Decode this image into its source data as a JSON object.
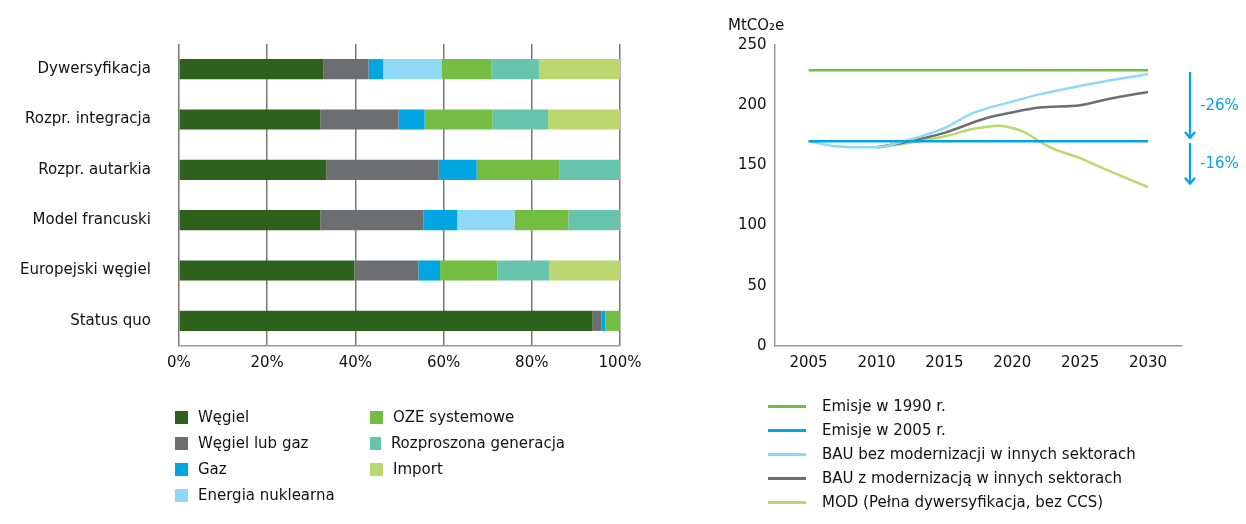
{
  "chart_data": [
    {
      "type": "bar",
      "orientation": "horizontal",
      "stacked": true,
      "categories": [
        "Dywersyfikacja",
        "Rozpr. integracja",
        "Rozpr. autarkia",
        "Model francuski",
        "Europejski węgiel",
        "Status quo"
      ],
      "series": [
        {
          "name": "Węgiel",
          "color": "#2e611c",
          "values": [
            32.7,
            32.1,
            33.4,
            32.1,
            39.8,
            93.8
          ]
        },
        {
          "name": "Węgiel lub gaz",
          "color": "#6d6e71",
          "values": [
            10.3,
            17.7,
            25.5,
            23.3,
            14.5,
            2.0
          ]
        },
        {
          "name": "Gaz",
          "color": "#00a6e2",
          "values": [
            3.3,
            5.9,
            8.6,
            7.7,
            4.9,
            0.9
          ]
        },
        {
          "name": "Energia nuklearna",
          "color": "#8fd8f6",
          "values": [
            13.2,
            0,
            0,
            13.0,
            0,
            0
          ]
        },
        {
          "name": "OZE systemowe",
          "color": "#74bd43",
          "values": [
            11.4,
            15.4,
            18.7,
            12.2,
            13.0,
            3.3
          ]
        },
        {
          "name": "Rozproszona generacja",
          "color": "#66c4ad",
          "values": [
            10.7,
            12.6,
            13.8,
            11.7,
            11.8,
            0
          ]
        },
        {
          "name": "Import",
          "color": "#bad86e",
          "values": [
            18.4,
            16.3,
            0,
            0,
            16.0,
            0
          ]
        }
      ],
      "xlim": [
        0,
        100
      ],
      "xticks": [
        {
          "value": 0,
          "label": "0%"
        },
        {
          "value": 20,
          "label": "20%"
        },
        {
          "value": 40,
          "label": "40%"
        },
        {
          "value": 60,
          "label": "60%"
        },
        {
          "value": 80,
          "label": "80%"
        },
        {
          "value": 100,
          "label": "100%"
        }
      ],
      "grid": "x",
      "legend": "bottom"
    },
    {
      "type": "line",
      "ylabel": "MtCO₂e",
      "marker": "none",
      "series": [
        {
          "name": "Emisje w 1990 r.",
          "color": "#74bd43",
          "x": [
            2005,
            2030
          ],
          "values": [
            229,
            229
          ]
        },
        {
          "name": "Emisje w 2005 r.",
          "color": "#00a6e2",
          "x": [
            2005,
            2030
          ],
          "values": [
            170,
            170
          ]
        },
        {
          "name": "BAU bez modernizacji w innych sektorach",
          "color": "#8fd8f6",
          "x": [
            2005,
            2007,
            2010,
            2012,
            2015,
            2017,
            2020,
            2022,
            2025,
            2030
          ],
          "values": [
            170,
            166,
            165,
            170,
            181,
            193,
            203,
            209,
            216,
            226
          ]
        },
        {
          "name": "BAU z modernizacją w innych sektorach",
          "color": "#6d6e71",
          "x": [
            2010,
            2012,
            2015,
            2018,
            2020,
            2022,
            2025,
            2027,
            2030
          ],
          "values": [
            165,
            169,
            177,
            189,
            194,
            198,
            200,
            205,
            211
          ]
        },
        {
          "name": "MOD (Pełna dywersyfikacja, bez CCS)",
          "color": "#bad86e",
          "x": [
            2010,
            2012,
            2015,
            2017,
            2019,
            2020,
            2021,
            2022,
            2023,
            2025,
            2027,
            2030
          ],
          "values": [
            165,
            168,
            174,
            180,
            183,
            181,
            177,
            170,
            164,
            156,
            146,
            132
          ]
        }
      ],
      "xlim": [
        2002.5,
        2032.5
      ],
      "xticks": [
        2005,
        2010,
        2015,
        2020,
        2025,
        2030
      ],
      "ylim": [
        0,
        250
      ],
      "yticks": [
        0,
        50,
        100,
        150,
        200,
        250
      ],
      "annotations": [
        "-26%",
        "-16%"
      ],
      "grid": false,
      "legend": "bottom"
    }
  ]
}
